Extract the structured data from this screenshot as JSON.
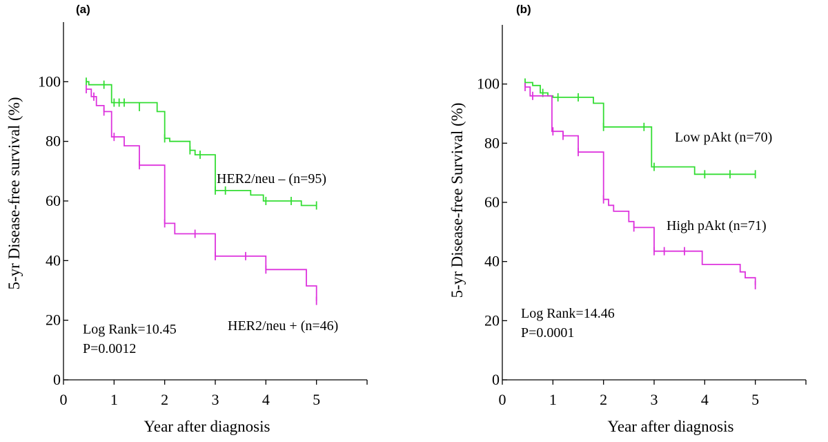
{
  "colors": {
    "green": "#33dd33",
    "magenta": "#dd33dd"
  },
  "chart_data": [
    {
      "type": "line",
      "panel_label": "(a)",
      "xlabel": "Year after diagnosis",
      "ylabel": "5-yr Disease-free survival (%)",
      "xlim": [
        0,
        6
      ],
      "ylim": [
        0,
        120
      ],
      "xticks": [
        0,
        1,
        2,
        3,
        4,
        5
      ],
      "yticks": [
        0,
        20,
        40,
        60,
        80,
        100
      ],
      "series": [
        {
          "name": "HER2/neu – (n=95)",
          "color": "green",
          "steps": [
            [
              0.45,
              100
            ],
            [
              0.5,
              100
            ],
            [
              0.5,
              99
            ],
            [
              0.95,
              99
            ],
            [
              0.95,
              93
            ],
            [
              1.85,
              93
            ],
            [
              1.85,
              90
            ],
            [
              2.0,
              90
            ],
            [
              2.0,
              81
            ],
            [
              2.1,
              81
            ],
            [
              2.1,
              80
            ],
            [
              2.5,
              80
            ],
            [
              2.5,
              77
            ],
            [
              2.6,
              77
            ],
            [
              2.6,
              75.5
            ],
            [
              3.0,
              75.5
            ],
            [
              3.0,
              63.5
            ],
            [
              3.7,
              63.5
            ],
            [
              3.7,
              62
            ],
            [
              3.95,
              62
            ],
            [
              3.95,
              60
            ],
            [
              4.7,
              60
            ],
            [
              4.7,
              58.5
            ],
            [
              5.0,
              58.5
            ]
          ],
          "censor": [
            [
              0.45,
              100
            ],
            [
              0.8,
              99
            ],
            [
              1.0,
              93
            ],
            [
              1.1,
              93
            ],
            [
              1.2,
              93
            ],
            [
              1.5,
              91.5
            ],
            [
              2.0,
              81
            ],
            [
              2.5,
              77
            ],
            [
              2.7,
              75.5
            ],
            [
              3.0,
              63.5
            ],
            [
              3.2,
              63.5
            ],
            [
              4.0,
              60
            ],
            [
              4.5,
              60
            ],
            [
              5.0,
              58.5
            ]
          ]
        },
        {
          "name": "HER2/neu + (n=46)",
          "color": "magenta",
          "steps": [
            [
              0.45,
              97.5
            ],
            [
              0.55,
              97.5
            ],
            [
              0.55,
              95
            ],
            [
              0.65,
              95
            ],
            [
              0.65,
              92
            ],
            [
              0.8,
              92
            ],
            [
              0.8,
              90
            ],
            [
              0.95,
              90
            ],
            [
              0.95,
              81.5
            ],
            [
              1.2,
              81.5
            ],
            [
              1.2,
              78.5
            ],
            [
              1.5,
              78.5
            ],
            [
              1.5,
              72
            ],
            [
              2.0,
              72
            ],
            [
              2.0,
              52.5
            ],
            [
              2.2,
              52.5
            ],
            [
              2.2,
              49
            ],
            [
              3.0,
              49
            ],
            [
              3.0,
              41.5
            ],
            [
              4.0,
              41.5
            ],
            [
              4.0,
              37
            ],
            [
              4.8,
              37
            ],
            [
              4.8,
              31.5
            ],
            [
              5.0,
              31.5
            ],
            [
              5.0,
              26.5
            ]
          ],
          "censor": [
            [
              0.45,
              97.5
            ],
            [
              0.6,
              95
            ],
            [
              0.8,
              90
            ],
            [
              1.0,
              81.5
            ],
            [
              1.5,
              72
            ],
            [
              2.0,
              52.5
            ],
            [
              2.6,
              49
            ],
            [
              3.0,
              41.5
            ],
            [
              3.6,
              41.5
            ],
            [
              4.0,
              37
            ],
            [
              5.0,
              26.5
            ]
          ]
        }
      ],
      "annotations": {
        "series1": "HER2/neu – (n=95)",
        "series2": "HER2/neu + (n=46)",
        "stat1": "Log Rank=10.45",
        "stat2": "P=0.0012"
      }
    },
    {
      "type": "line",
      "panel_label": "(b)",
      "xlabel": "Year after diagnosis",
      "ylabel": "5-yr Disease-free Survival (%)",
      "xlim": [
        0,
        6
      ],
      "ylim": [
        0,
        120
      ],
      "xticks": [
        0,
        1,
        2,
        3,
        4,
        5
      ],
      "yticks": [
        0,
        20,
        40,
        60,
        80,
        100
      ],
      "series": [
        {
          "name": "Low pAkt (n=70)",
          "color": "green",
          "steps": [
            [
              0.45,
              100.5
            ],
            [
              0.6,
              100.5
            ],
            [
              0.6,
              99.5
            ],
            [
              0.75,
              99.5
            ],
            [
              0.75,
              97
            ],
            [
              0.9,
              97
            ],
            [
              0.9,
              96
            ],
            [
              1.0,
              96
            ],
            [
              1.0,
              95.5
            ],
            [
              1.8,
              95.5
            ],
            [
              1.8,
              93.5
            ],
            [
              2.0,
              93.5
            ],
            [
              2.0,
              85.5
            ],
            [
              2.95,
              85.5
            ],
            [
              2.95,
              72
            ],
            [
              3.8,
              72
            ],
            [
              3.8,
              69.5
            ],
            [
              5.0,
              69.5
            ]
          ],
          "censor": [
            [
              0.45,
              100.5
            ],
            [
              0.8,
              97
            ],
            [
              1.1,
              95.5
            ],
            [
              1.5,
              95.5
            ],
            [
              2.0,
              85.5
            ],
            [
              2.8,
              85.5
            ],
            [
              3.0,
              72
            ],
            [
              4.0,
              69.5
            ],
            [
              4.5,
              69.5
            ],
            [
              5.0,
              69.5
            ]
          ]
        },
        {
          "name": "High pAkt (n=71)",
          "color": "magenta",
          "steps": [
            [
              0.45,
              99
            ],
            [
              0.55,
              99
            ],
            [
              0.55,
              96
            ],
            [
              0.98,
              96
            ],
            [
              0.98,
              84
            ],
            [
              1.2,
              84
            ],
            [
              1.2,
              82.5
            ],
            [
              1.5,
              82.5
            ],
            [
              1.5,
              77
            ],
            [
              2.0,
              77
            ],
            [
              2.0,
              61
            ],
            [
              2.1,
              61
            ],
            [
              2.1,
              59
            ],
            [
              2.2,
              59
            ],
            [
              2.2,
              57
            ],
            [
              2.5,
              57
            ],
            [
              2.5,
              53.5
            ],
            [
              2.6,
              53.5
            ],
            [
              2.6,
              51.5
            ],
            [
              3.0,
              51.5
            ],
            [
              3.0,
              43.5
            ],
            [
              3.95,
              43.5
            ],
            [
              3.95,
              39
            ],
            [
              4.7,
              39
            ],
            [
              4.7,
              36.5
            ],
            [
              4.8,
              36.5
            ],
            [
              4.8,
              34.5
            ],
            [
              5.0,
              34.5
            ],
            [
              5.0,
              32
            ]
          ],
          "censor": [
            [
              0.45,
              99
            ],
            [
              0.6,
              96
            ],
            [
              1.0,
              84
            ],
            [
              1.2,
              82.5
            ],
            [
              1.5,
              77
            ],
            [
              2.0,
              61
            ],
            [
              2.6,
              51.5
            ],
            [
              3.0,
              43.5
            ],
            [
              3.2,
              43.5
            ],
            [
              3.6,
              43.5
            ],
            [
              5.0,
              32
            ]
          ]
        }
      ],
      "annotations": {
        "series1": "Low pAkt (n=70)",
        "series2": "High pAkt (n=71)",
        "stat1": "Log Rank=14.46",
        "stat2": "P=0.0001"
      }
    }
  ]
}
